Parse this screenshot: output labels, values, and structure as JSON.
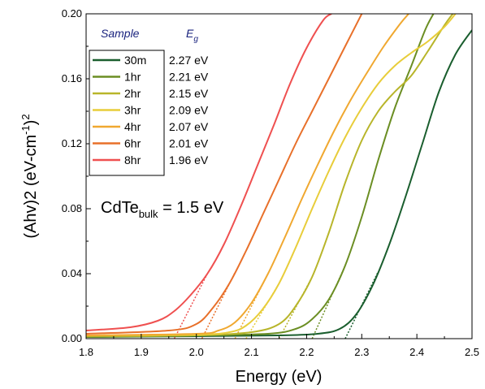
{
  "chart_data": {
    "type": "line",
    "title": "",
    "xlabel": "Energy (eV)",
    "ylabel": "(Ahv)2 (eV-cm",
    "ylabel_sup1": "-1",
    "ylabel_sup2": "2",
    "ylabel_close": ")",
    "xlim": [
      1.8,
      2.5
    ],
    "ylim": [
      0.0,
      0.2
    ],
    "x_ticks": [
      "1.8",
      "1.9",
      "2.0",
      "2.1",
      "2.2",
      "2.3",
      "2.4",
      "2.5"
    ],
    "y_ticks": [
      "0.00",
      "0.04",
      "0.08",
      "0.12",
      "0.16",
      "0.20"
    ],
    "grid": false,
    "legend": {
      "placement": "top-left",
      "header_sample": "Sample",
      "header_eg": "E",
      "header_eg_sub": "g"
    },
    "annotation": {
      "prefix": "CdTe",
      "subscript": "bulk",
      "suffix": " = 1.5 eV"
    },
    "series": [
      {
        "name": "30m",
        "eg_label": "2.27 eV",
        "eg": 2.27,
        "color": "#1a5e2e",
        "curve": [
          [
            1.8,
            0.001
          ],
          [
            2.0,
            0.0015
          ],
          [
            2.15,
            0.002
          ],
          [
            2.22,
            0.003
          ],
          [
            2.26,
            0.006
          ],
          [
            2.29,
            0.015
          ],
          [
            2.32,
            0.033
          ],
          [
            2.35,
            0.058
          ],
          [
            2.38,
            0.088
          ],
          [
            2.41,
            0.12
          ],
          [
            2.44,
            0.152
          ],
          [
            2.47,
            0.175
          ],
          [
            2.5,
            0.19
          ]
        ]
      },
      {
        "name": "1hr",
        "eg_label": "2.21 eV",
        "eg": 2.21,
        "color": "#6b8e23",
        "curve": [
          [
            1.8,
            0.001
          ],
          [
            2.0,
            0.002
          ],
          [
            2.13,
            0.003
          ],
          [
            2.18,
            0.006
          ],
          [
            2.21,
            0.012
          ],
          [
            2.24,
            0.024
          ],
          [
            2.27,
            0.045
          ],
          [
            2.3,
            0.075
          ],
          [
            2.33,
            0.11
          ],
          [
            2.36,
            0.142
          ],
          [
            2.39,
            0.168
          ],
          [
            2.415,
            0.19
          ],
          [
            2.43,
            0.2
          ]
        ]
      },
      {
        "name": "2hr",
        "eg_label": "2.15 eV",
        "eg": 2.15,
        "color": "#b8b52a",
        "curve": [
          [
            1.8,
            0.0015
          ],
          [
            2.0,
            0.002
          ],
          [
            2.1,
            0.004
          ],
          [
            2.15,
            0.009
          ],
          [
            2.18,
            0.02
          ],
          [
            2.21,
            0.038
          ],
          [
            2.24,
            0.065
          ],
          [
            2.27,
            0.096
          ],
          [
            2.3,
            0.122
          ],
          [
            2.33,
            0.14
          ],
          [
            2.36,
            0.152
          ],
          [
            2.39,
            0.162
          ],
          [
            2.42,
            0.177
          ],
          [
            2.45,
            0.193
          ],
          [
            2.465,
            0.2
          ]
        ]
      },
      {
        "name": "3hr",
        "eg_label": "2.09 eV",
        "eg": 2.09,
        "color": "#e8cd3a",
        "curve": [
          [
            1.8,
            0.002
          ],
          [
            2.0,
            0.0025
          ],
          [
            2.06,
            0.004
          ],
          [
            2.09,
            0.008
          ],
          [
            2.12,
            0.018
          ],
          [
            2.15,
            0.034
          ],
          [
            2.18,
            0.056
          ],
          [
            2.21,
            0.08
          ],
          [
            2.24,
            0.103
          ],
          [
            2.27,
            0.124
          ],
          [
            2.3,
            0.142
          ],
          [
            2.33,
            0.157
          ],
          [
            2.36,
            0.168
          ],
          [
            2.39,
            0.176
          ],
          [
            2.42,
            0.183
          ],
          [
            2.45,
            0.192
          ],
          [
            2.47,
            0.2
          ]
        ]
      },
      {
        "name": "4hr",
        "eg_label": "2.07 eV",
        "eg": 2.07,
        "color": "#f0a830",
        "curve": [
          [
            1.8,
            0.002
          ],
          [
            2.0,
            0.003
          ],
          [
            2.04,
            0.005
          ],
          [
            2.07,
            0.01
          ],
          [
            2.1,
            0.022
          ],
          [
            2.13,
            0.04
          ],
          [
            2.16,
            0.062
          ],
          [
            2.19,
            0.085
          ],
          [
            2.22,
            0.107
          ],
          [
            2.25,
            0.128
          ],
          [
            2.28,
            0.147
          ],
          [
            2.31,
            0.164
          ],
          [
            2.34,
            0.18
          ],
          [
            2.37,
            0.194
          ],
          [
            2.385,
            0.2
          ]
        ]
      },
      {
        "name": "6hr",
        "eg_label": "2.01 eV",
        "eg": 2.01,
        "color": "#e8702a",
        "curve": [
          [
            1.8,
            0.003
          ],
          [
            1.95,
            0.005
          ],
          [
            2.0,
            0.009
          ],
          [
            2.03,
            0.019
          ],
          [
            2.06,
            0.034
          ],
          [
            2.09,
            0.054
          ],
          [
            2.12,
            0.076
          ],
          [
            2.15,
            0.098
          ],
          [
            2.18,
            0.12
          ],
          [
            2.21,
            0.14
          ],
          [
            2.24,
            0.16
          ],
          [
            2.27,
            0.18
          ],
          [
            2.3,
            0.2
          ]
        ]
      },
      {
        "name": "8hr",
        "eg_label": "1.96 eV",
        "eg": 1.96,
        "color": "#ef5050",
        "curve": [
          [
            1.8,
            0.005
          ],
          [
            1.88,
            0.007
          ],
          [
            1.93,
            0.011
          ],
          [
            1.96,
            0.017
          ],
          [
            1.99,
            0.027
          ],
          [
            2.02,
            0.04
          ],
          [
            2.05,
            0.058
          ],
          [
            2.08,
            0.081
          ],
          [
            2.11,
            0.106
          ],
          [
            2.14,
            0.131
          ],
          [
            2.17,
            0.157
          ],
          [
            2.2,
            0.179
          ],
          [
            2.23,
            0.196
          ],
          [
            2.245,
            0.2
          ]
        ]
      }
    ]
  }
}
